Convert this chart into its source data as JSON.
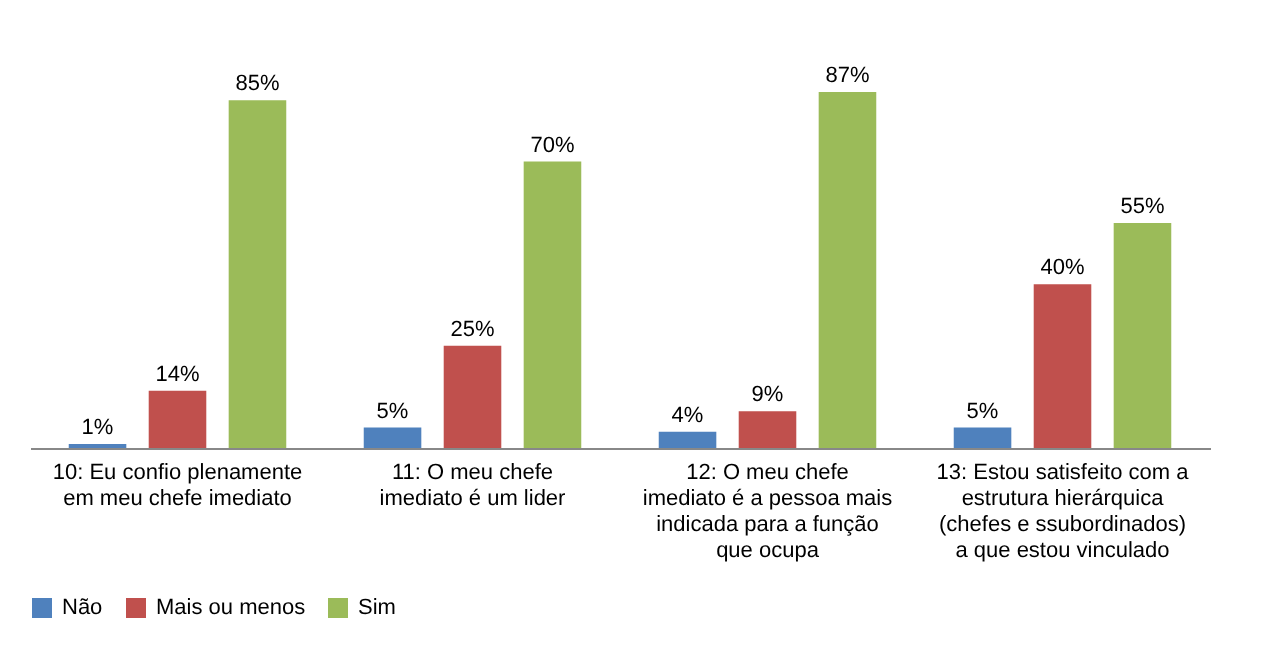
{
  "chart_data": {
    "type": "bar",
    "categories": [
      "10: Eu confio plenamente\nem meu chefe imediato",
      "11: O meu chefe\nimediato é um lider",
      "12: O meu chefe\nimediato é a pessoa mais\nindicada para a função\nque ocupa",
      "13: Estou satisfeito com a\nestrutura hierárquica\n(chefes e ssubordinados)\na que estou vinculado"
    ],
    "series": [
      {
        "name": "Não",
        "color": "#4f81bd",
        "values": [
          1,
          5,
          4,
          5
        ],
        "value_labels": [
          "1%",
          "5%",
          "4%",
          "5%"
        ]
      },
      {
        "name": "Mais ou menos",
        "color": "#c0504d",
        "values": [
          14,
          25,
          9,
          40
        ],
        "value_labels": [
          "14%",
          "25%",
          "9%",
          "40%"
        ]
      },
      {
        "name": "Sim",
        "color": "#9bbb59",
        "values": [
          85,
          70,
          87,
          55
        ],
        "value_labels": [
          "85%",
          "70%",
          "87%",
          "55%"
        ]
      }
    ],
    "legend": "bottom"
  }
}
